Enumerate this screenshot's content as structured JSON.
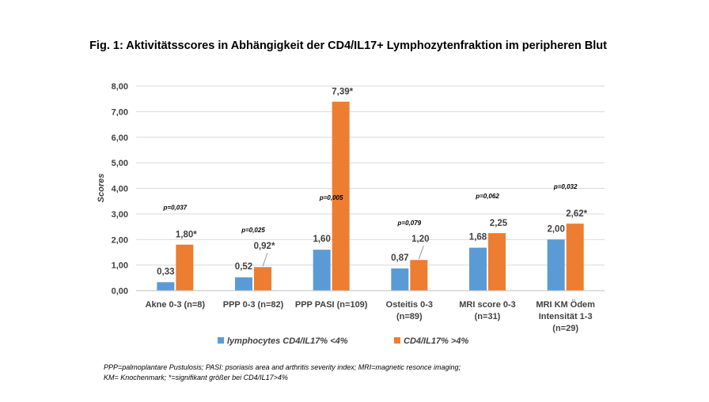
{
  "chart_data": {
    "type": "bar",
    "title": "Fig. 1: Aktivitätsscores in Abhängigkeit der CD4/IL17+ Lymphozytenfraktion im peripheren Blut",
    "ylabel": "Scores",
    "ylim": [
      0,
      8
    ],
    "yticks": [
      "0,00",
      "1,00",
      "2,00",
      "3,00",
      "4,00",
      "5,00",
      "6,00",
      "7,00",
      "8,00"
    ],
    "grid": true,
    "legend_position": "bottom",
    "categories": [
      [
        "Akne 0-3 (n=8)"
      ],
      [
        "PPP 0-3 (n=82)"
      ],
      [
        "PPP PASI (n=109)"
      ],
      [
        "Osteitis 0-3",
        "(n=89)"
      ],
      [
        "MRI score 0-3",
        "(n=31)"
      ],
      [
        "MRI KM Ödem",
        "Intensität 1-3",
        "(n=29)"
      ]
    ],
    "series": [
      {
        "name": "lymphocytes CD4/IL17% <4%",
        "color": "#5B9BD5",
        "values": [
          0.33,
          0.52,
          1.6,
          0.87,
          1.68,
          2.0
        ],
        "labels": [
          "0,33",
          "0,52",
          "1,60",
          "0,87",
          "1,68",
          "2,00"
        ]
      },
      {
        "name": "CD4/IL17% >4%",
        "color": "#ED7D31",
        "values": [
          1.8,
          0.92,
          7.39,
          1.2,
          2.25,
          2.62
        ],
        "labels": [
          "1,80*",
          "0,92*",
          "7,39*",
          "1,20",
          "2,25",
          "2,62*"
        ]
      }
    ],
    "annotations": [
      "p=0,037",
      "p=0,025",
      "p=0,005",
      "p=0,079",
      "p=0,062",
      "p=0,032"
    ]
  },
  "footnote": {
    "line1": "PPP=palmoplantare Pustulosis; PASI: psoriasis area and arthritis severity index; MRI=magnetic resonce imaging;",
    "line2": "KM= Knochenmark; *=signifikant größer bei CD4/IL17>4%"
  }
}
